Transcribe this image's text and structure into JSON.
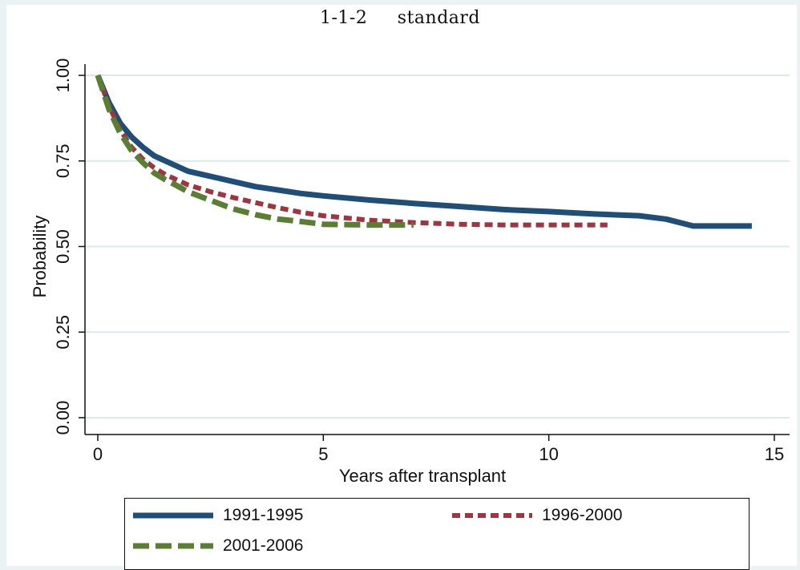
{
  "chart_data": {
    "type": "line",
    "title": "1-1-2     standard",
    "xlabel": "Years after transplant",
    "ylabel": "Probability",
    "xlim": [
      0,
      15
    ],
    "ylim": [
      0,
      1
    ],
    "xticks": [
      "0",
      "5",
      "10",
      "15"
    ],
    "yticks": [
      "0.00",
      "0.25",
      "0.50",
      "0.75",
      "1.00"
    ],
    "grid": true,
    "legend_position": "bottom",
    "series": [
      {
        "name": "1991-1995",
        "color": "#1f4e79",
        "style": "solid",
        "x": [
          0,
          0.25,
          0.5,
          0.75,
          1,
          1.25,
          1.5,
          1.75,
          2,
          2.5,
          3,
          3.5,
          4,
          4.5,
          5,
          6,
          7,
          8,
          9,
          10,
          11,
          12,
          12.6,
          13.2,
          14.5
        ],
        "y": [
          1.0,
          0.92,
          0.86,
          0.82,
          0.79,
          0.765,
          0.75,
          0.735,
          0.72,
          0.705,
          0.69,
          0.675,
          0.665,
          0.655,
          0.648,
          0.636,
          0.626,
          0.617,
          0.608,
          0.602,
          0.595,
          0.59,
          0.58,
          0.56,
          0.56
        ]
      },
      {
        "name": "1996-2000",
        "color": "#a03541",
        "style": "dash",
        "x": [
          0,
          0.25,
          0.5,
          0.75,
          1,
          1.25,
          1.5,
          1.75,
          2,
          2.5,
          3,
          3.5,
          4,
          4.5,
          5,
          6,
          7,
          8,
          9,
          10,
          11.3
        ],
        "y": [
          1.0,
          0.91,
          0.84,
          0.79,
          0.755,
          0.73,
          0.71,
          0.695,
          0.68,
          0.66,
          0.643,
          0.628,
          0.613,
          0.6,
          0.59,
          0.577,
          0.57,
          0.565,
          0.563,
          0.563,
          0.563
        ]
      },
      {
        "name": "2001-2006",
        "color": "#5a7f33",
        "style": "longdash",
        "x": [
          0,
          0.25,
          0.5,
          0.75,
          1,
          1.25,
          1.5,
          1.75,
          2,
          2.5,
          3,
          3.5,
          4,
          4.5,
          5,
          6,
          7
        ],
        "y": [
          1.0,
          0.9,
          0.83,
          0.78,
          0.745,
          0.715,
          0.695,
          0.678,
          0.66,
          0.635,
          0.61,
          0.593,
          0.58,
          0.573,
          0.565,
          0.563,
          0.563
        ]
      }
    ]
  }
}
